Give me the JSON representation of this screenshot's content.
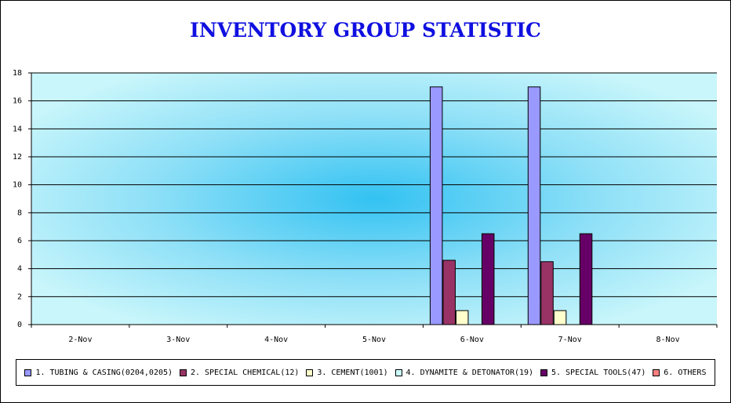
{
  "chart_data": {
    "type": "bar",
    "title": "INVENTORY GROUP STATISTIC",
    "categories": [
      "2-Nov",
      "3-Nov",
      "4-Nov",
      "5-Nov",
      "6-Nov",
      "7-Nov",
      "8-Nov"
    ],
    "ylim": [
      0,
      18
    ],
    "yticks": [
      0,
      2,
      4,
      6,
      8,
      10,
      12,
      14,
      16,
      18
    ],
    "grid": true,
    "legend_position": "bottom",
    "series": [
      {
        "name": "1. TUBING & CASING(0204,0205)",
        "color": "#9999ff",
        "values": [
          0,
          0,
          0,
          0,
          17,
          17,
          0
        ]
      },
      {
        "name": "2. SPECIAL CHEMICAL(12)",
        "color": "#993366",
        "values": [
          0,
          0,
          0,
          0,
          4.6,
          4.5,
          0
        ]
      },
      {
        "name": "3. CEMENT(1001)",
        "color": "#ffffcc",
        "values": [
          0,
          0,
          0,
          0,
          1,
          1,
          0
        ]
      },
      {
        "name": "4. DYNAMITE & DETONATOR(19)",
        "color": "#ccffff",
        "values": [
          0,
          0,
          0,
          0,
          0,
          0,
          0
        ]
      },
      {
        "name": "5. SPECIAL TOOLS(47)",
        "color": "#660066",
        "values": [
          0,
          0,
          0,
          0,
          6.5,
          6.5,
          0
        ]
      },
      {
        "name": "6. OTHERS",
        "color": "#ff8080",
        "values": [
          0,
          0,
          0,
          0,
          0,
          0,
          0
        ]
      }
    ]
  }
}
